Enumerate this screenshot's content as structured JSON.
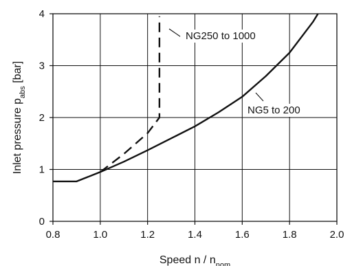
{
  "chart_data": {
    "type": "line",
    "xlabel": {
      "main": "Speed n / n",
      "sub": "nom"
    },
    "ylabel": {
      "main": "Inlet pressure p",
      "sub": "abs",
      "unit": " [bar]"
    },
    "xlim": [
      0.8,
      2.0
    ],
    "ylim": [
      0,
      4
    ],
    "x_ticks": [
      "0.8",
      "1.0",
      "1.2",
      "1.4",
      "1.6",
      "1.8",
      "2.0"
    ],
    "y_ticks": [
      "0",
      "1",
      "2",
      "3",
      "4"
    ],
    "grid": true,
    "legend": "none",
    "series": [
      {
        "name": "NG5 to 200",
        "style": "solid",
        "x": [
          0.8,
          0.9,
          1.0,
          1.1,
          1.2,
          1.3,
          1.4,
          1.5,
          1.6,
          1.7,
          1.8,
          1.9,
          1.92
        ],
        "y": [
          0.77,
          0.77,
          0.95,
          1.15,
          1.37,
          1.6,
          1.83,
          2.1,
          2.4,
          2.8,
          3.25,
          3.85,
          4.0
        ]
      },
      {
        "name": "NG250 to 1000",
        "style": "dashed",
        "x": [
          1.0,
          1.1,
          1.2,
          1.25,
          1.25,
          1.25
        ],
        "y": [
          0.95,
          1.3,
          1.7,
          2.0,
          3.0,
          3.95
        ]
      }
    ],
    "annotations": [
      {
        "text": "NG250 to 1000",
        "series": 1
      },
      {
        "text": "NG5 to 200",
        "series": 0
      }
    ]
  }
}
